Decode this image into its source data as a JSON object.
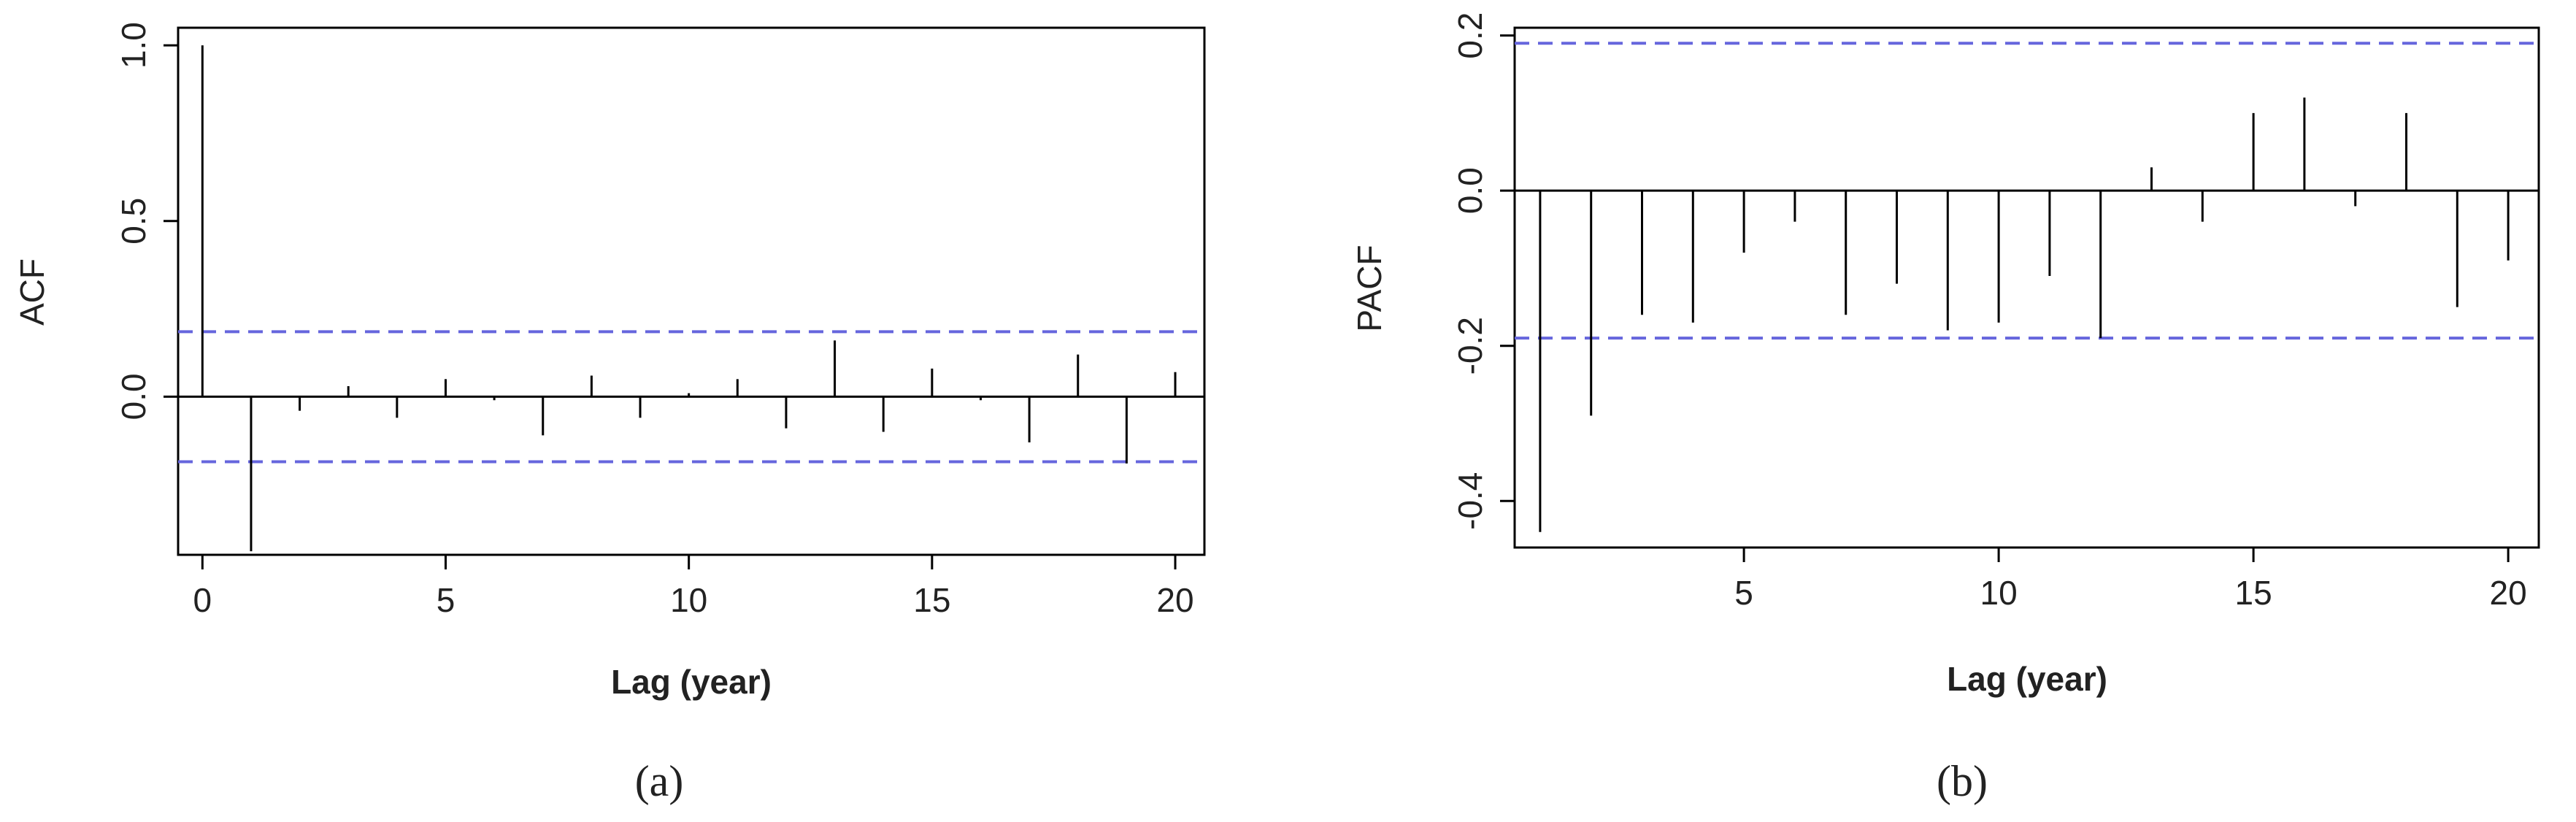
{
  "figure": {
    "panels": [
      {
        "caption": "(a)",
        "xlabel": "Lag (year)",
        "ylabel": "ACF"
      },
      {
        "caption": "(b)",
        "xlabel": "Lag (year)",
        "ylabel": "PACF"
      }
    ]
  },
  "colors": {
    "bar": "#000000",
    "axis": "#000000",
    "confidence_band": "#6666dd",
    "text": "#222222"
  },
  "chart_data": [
    {
      "type": "bar",
      "title": "",
      "xlabel": "Lag (year)",
      "ylabel": "ACF",
      "caption": "(a)",
      "x": [
        0,
        1,
        2,
        3,
        4,
        5,
        6,
        7,
        8,
        9,
        10,
        11,
        12,
        13,
        14,
        15,
        16,
        17,
        18,
        19,
        20
      ],
      "values": [
        1.0,
        -0.44,
        -0.04,
        0.03,
        -0.06,
        0.05,
        -0.01,
        -0.11,
        0.06,
        -0.06,
        0.01,
        0.05,
        -0.09,
        0.16,
        -0.1,
        0.08,
        -0.01,
        -0.13,
        0.12,
        -0.19,
        0.07
      ],
      "confidence_limits": [
        0.185,
        -0.185
      ],
      "xlim": [
        -0.5,
        20.6
      ],
      "ylim": [
        -0.45,
        1.05
      ],
      "x_ticks": [
        0,
        5,
        10,
        15,
        20
      ],
      "y_ticks": [
        0.0,
        0.5,
        1.0
      ],
      "x_tick_labels": [
        "0",
        "5",
        "10",
        "15",
        "20"
      ],
      "y_tick_labels": [
        "0.0",
        "0.5",
        "1.0"
      ],
      "grid": false,
      "legend": "none"
    },
    {
      "type": "bar",
      "title": "",
      "xlabel": "Lag (year)",
      "ylabel": "PACF",
      "caption": "(b)",
      "x": [
        1,
        2,
        3,
        4,
        5,
        6,
        7,
        8,
        9,
        10,
        11,
        12,
        13,
        14,
        15,
        16,
        17,
        18,
        19,
        20
      ],
      "values": [
        -0.44,
        -0.29,
        -0.16,
        -0.17,
        -0.08,
        -0.04,
        -0.16,
        -0.12,
        -0.18,
        -0.17,
        -0.11,
        -0.19,
        0.03,
        -0.04,
        0.1,
        0.12,
        -0.02,
        0.1,
        -0.15,
        -0.09
      ],
      "confidence_limits": [
        0.19,
        -0.19
      ],
      "xlim": [
        0.5,
        20.6
      ],
      "ylim": [
        -0.46,
        0.21
      ],
      "x_ticks": [
        5,
        10,
        15,
        20
      ],
      "y_ticks": [
        -0.4,
        -0.2,
        0.0,
        0.2
      ],
      "x_tick_labels": [
        "5",
        "10",
        "15",
        "20"
      ],
      "y_tick_labels": [
        "-0.4",
        "-0.2",
        "0.0",
        "0.2"
      ],
      "grid": false,
      "legend": "none"
    }
  ]
}
